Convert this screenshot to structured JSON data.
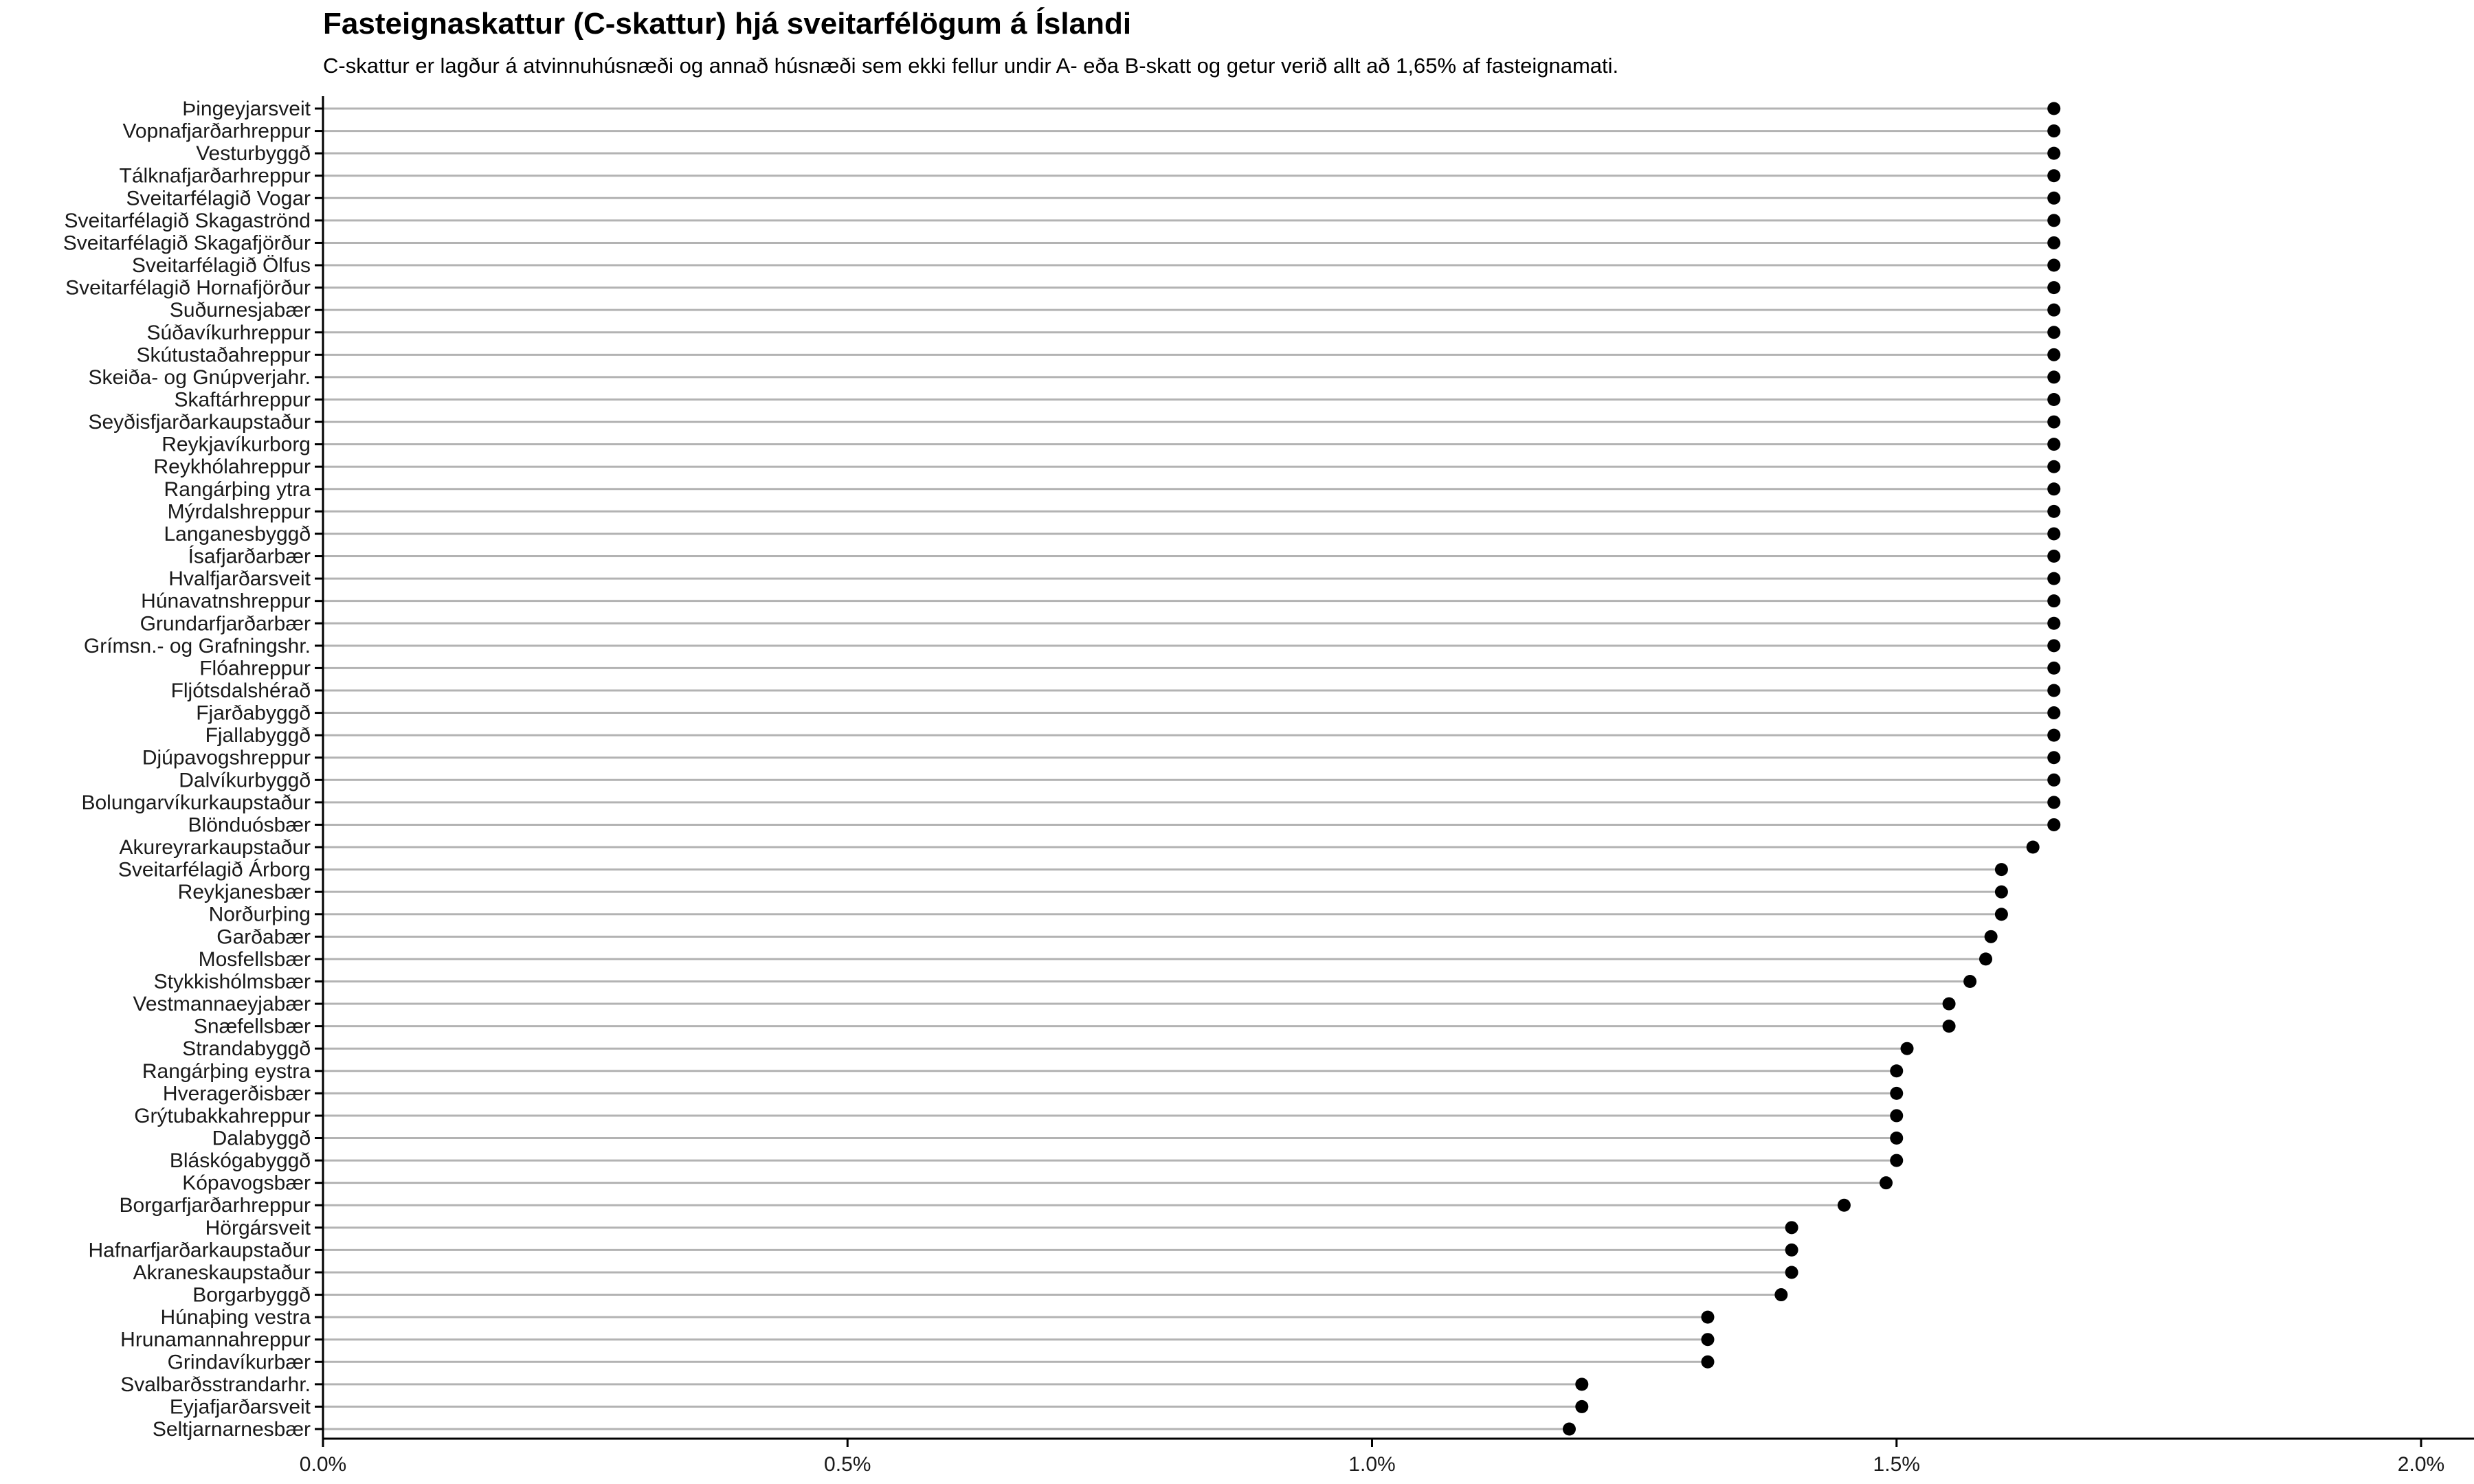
{
  "chart_data": {
    "type": "lollipop",
    "title": "Fasteignaskattur (C-skattur) hjá sveitarfélögum á Íslandi",
    "subtitle": "C-skattur er lagður á atvinnuhúsnæði og annað húsnæði sem ekki fellur undir A- eða B-skatt og getur verið allt að 1,65% af fasteignamati.",
    "xlim": [
      0,
      2.0
    ],
    "x_ticks": [
      0,
      0.5,
      1.0,
      1.5,
      2.0
    ],
    "x_tick_labels": [
      "0.0%",
      "0.5%",
      "1.0%",
      "1.5%",
      "2.0%"
    ],
    "grid": false,
    "colors": {
      "stem": "#b3b3b3",
      "point": "#000000",
      "axis": "#000000"
    },
    "categories": [
      "Þingeyjarsveit",
      "Vopnafjarðarhreppur",
      "Vesturbyggð",
      "Tálknafjarðarhreppur",
      "Sveitarfélagið Vogar",
      "Sveitarfélagið Skagaströnd",
      "Sveitarfélagið Skagafjörður",
      "Sveitarfélagið Ölfus",
      "Sveitarfélagið Hornafjörður",
      "Suðurnesjabær",
      "Súðavíkurhreppur",
      "Skútustaðahreppur",
      "Skeiða- og Gnúpverjahr.",
      "Skaftárhreppur",
      "Seyðisfjarðarkaupstaður",
      "Reykjavíkurborg",
      "Reykhólahreppur",
      "Rangárþing ytra",
      "Mýrdalshreppur",
      "Langanesbyggð",
      "Ísafjarðarbær",
      "Hvalfjarðarsveit",
      "Húnavatnshreppur",
      "Grundarfjarðarbær",
      "Grímsn.- og Grafningshr.",
      "Flóahreppur",
      "Fljótsdalshérað",
      "Fjarðabyggð",
      "Fjallabyggð",
      "Djúpavogshreppur",
      "Dalvíkurbyggð",
      "Bolungarvíkurkaupstaður",
      "Blönduósbær",
      "Akureyrarkaupstaður",
      "Sveitarfélagið Árborg",
      "Reykjanesbær",
      "Norðurþing",
      "Garðabær",
      "Mosfellsbær",
      "Stykkishólmsbær",
      "Vestmannaeyjabær",
      "Snæfellsbær",
      "Strandabyggð",
      "Rangárþing eystra",
      "Hveragerðisbær",
      "Grýtubakkahreppur",
      "Dalabyggð",
      "Bláskógabyggð",
      "Kópavogsbær",
      "Borgarfjarðarhreppur",
      "Hörgársveit",
      "Hafnarfjarðarkaupstaður",
      "Akraneskaupstaður",
      "Borgarbyggð",
      "Húnaþing vestra",
      "Hrunamannahreppur",
      "Grindavíkurbær",
      "Svalbarðsstrandarhr.",
      "Eyjafjarðarsveit",
      "Seltjarnarnesbær"
    ],
    "values": [
      1.65,
      1.65,
      1.65,
      1.65,
      1.65,
      1.65,
      1.65,
      1.65,
      1.65,
      1.65,
      1.65,
      1.65,
      1.65,
      1.65,
      1.65,
      1.65,
      1.65,
      1.65,
      1.65,
      1.65,
      1.65,
      1.65,
      1.65,
      1.65,
      1.65,
      1.65,
      1.65,
      1.65,
      1.65,
      1.65,
      1.65,
      1.65,
      1.65,
      1.63,
      1.6,
      1.6,
      1.6,
      1.59,
      1.585,
      1.57,
      1.55,
      1.55,
      1.51,
      1.5,
      1.5,
      1.5,
      1.5,
      1.5,
      1.49,
      1.45,
      1.4,
      1.4,
      1.4,
      1.39,
      1.32,
      1.32,
      1.32,
      1.2,
      1.2,
      1.188
    ]
  }
}
